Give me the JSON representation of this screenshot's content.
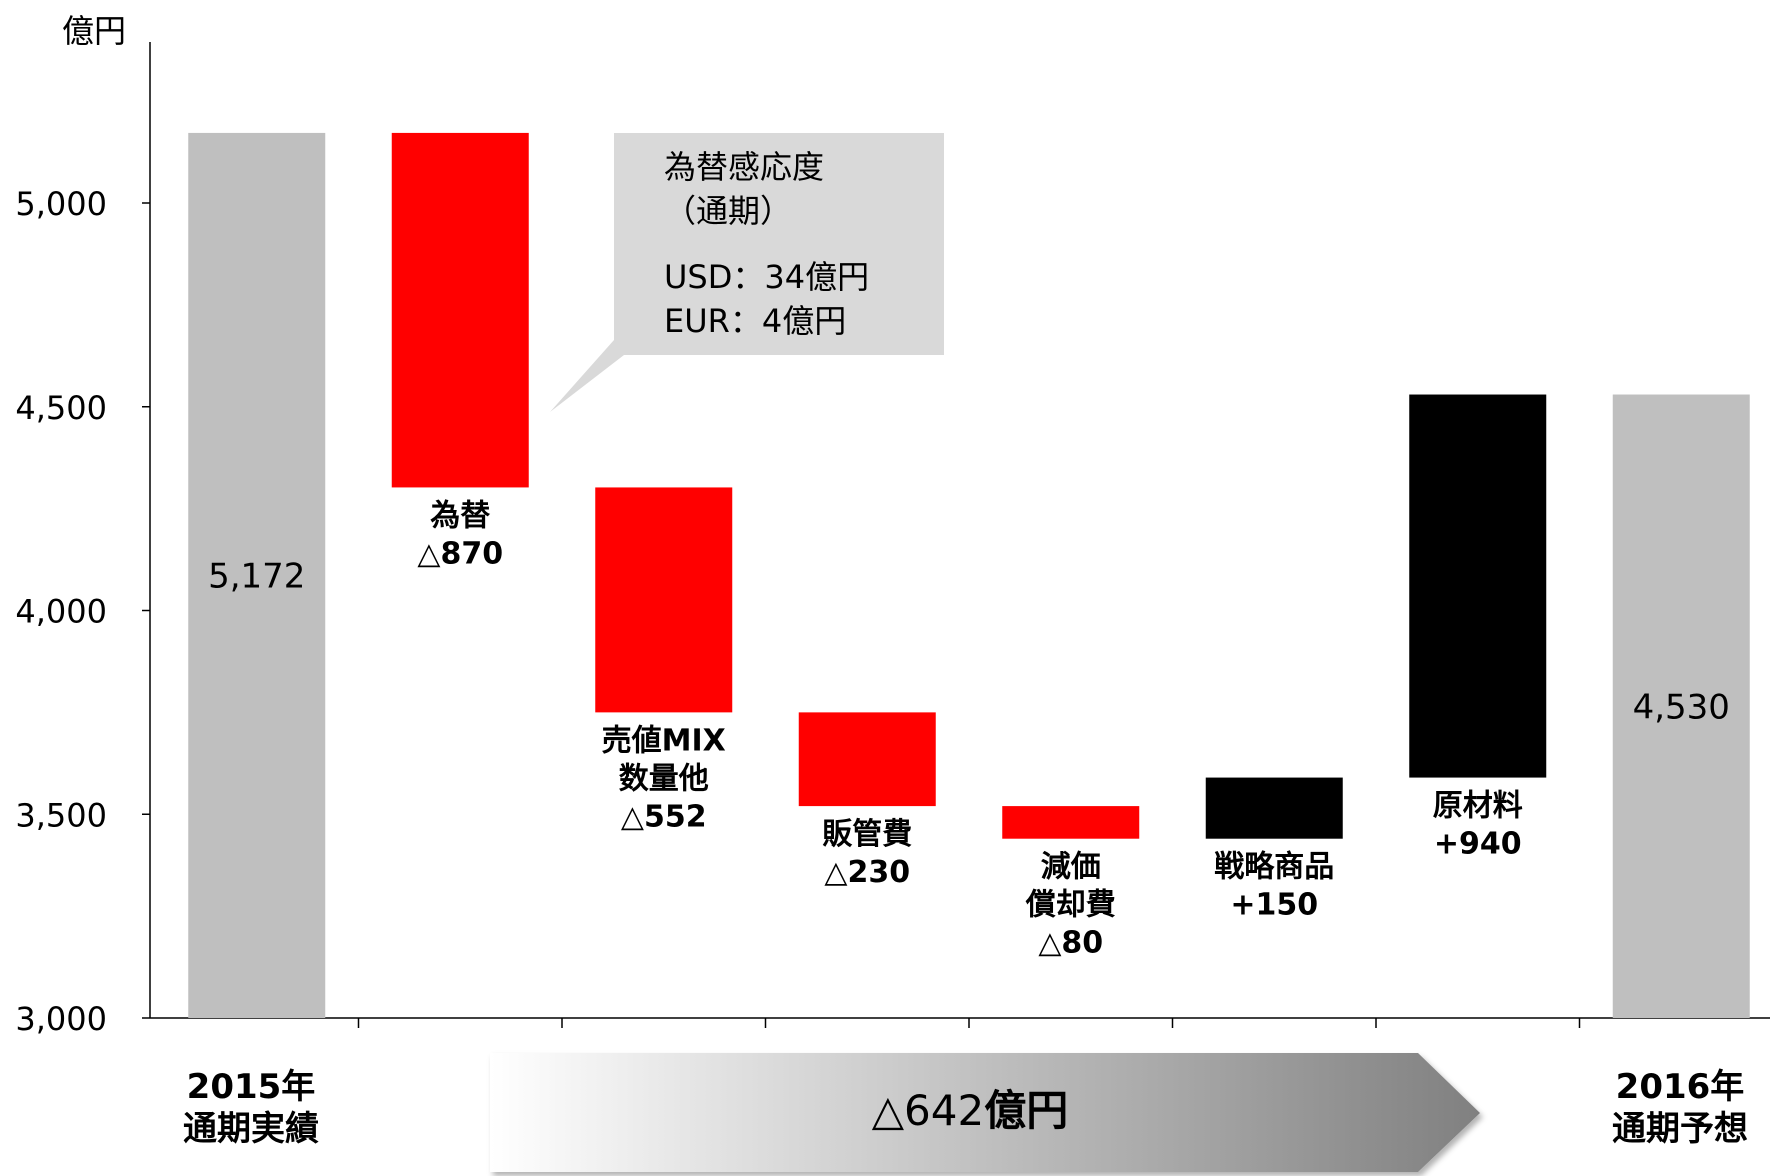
{
  "chart_data": {
    "type": "waterfall",
    "ylabel": "億円",
    "ylim": [
      3000,
      5350
    ],
    "yticks": [
      "3,000",
      "3,500",
      "4,000",
      "4,500",
      "5,000"
    ],
    "ytick_values": [
      3000,
      3500,
      4000,
      4500,
      5000
    ],
    "bars": [
      {
        "kind": "total",
        "from": 3000,
        "to": 5172,
        "color": "#bfbfbf",
        "value_label": "5,172"
      },
      {
        "kind": "decrease",
        "from": 5172,
        "to": 4302,
        "color": "#ff0000",
        "label_lines": [
          "為替",
          "△870"
        ]
      },
      {
        "kind": "decrease",
        "from": 4302,
        "to": 3750,
        "color": "#ff0000",
        "label_lines": [
          "売値MIX",
          "数量他",
          "△552"
        ]
      },
      {
        "kind": "decrease",
        "from": 3750,
        "to": 3520,
        "color": "#ff0000",
        "label_lines": [
          "販管費",
          "△230"
        ]
      },
      {
        "kind": "decrease",
        "from": 3520,
        "to": 3440,
        "color": "#ff0000",
        "label_lines": [
          "減価",
          "償却費",
          "△80"
        ]
      },
      {
        "kind": "increase",
        "from": 3440,
        "to": 3590,
        "color": "#000000",
        "label_lines": [
          "戦略商品",
          "+150"
        ]
      },
      {
        "kind": "increase",
        "from": 3590,
        "to": 4530,
        "color": "#000000",
        "label_lines": [
          "原材料",
          "+940"
        ]
      },
      {
        "kind": "total",
        "from": 3000,
        "to": 4530,
        "color": "#bfbfbf",
        "value_label": "4,530"
      }
    ],
    "callout": {
      "lines": [
        "為替感応度",
        "（通期）",
        "USD：34億円",
        "EUR：4億円"
      ]
    },
    "period_labels": {
      "start": [
        "2015年",
        "通期実績"
      ],
      "end": [
        "2016年",
        "通期予想"
      ]
    },
    "change_arrow": {
      "prefix": "△642",
      "suffix": "億円"
    }
  }
}
